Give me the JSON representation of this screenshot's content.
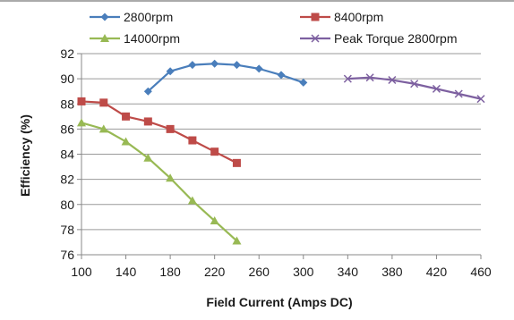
{
  "chart_data": {
    "type": "line",
    "title": "",
    "xlabel": "Field Current (Amps DC)",
    "ylabel": "Efficiency (%)",
    "xlim": [
      100,
      460
    ],
    "ylim": [
      76,
      92
    ],
    "x_ticks": [
      100,
      140,
      180,
      220,
      260,
      300,
      340,
      380,
      420,
      460
    ],
    "y_ticks": [
      76,
      78,
      80,
      82,
      84,
      86,
      88,
      90,
      92
    ],
    "grid": "horizontal",
    "legend_position": "top",
    "series": [
      {
        "name": "2800rpm",
        "color": "#4a7ebb",
        "marker": "diamond",
        "x": [
          160,
          180,
          200,
          220,
          240,
          260,
          280,
          300
        ],
        "values": [
          89.0,
          90.6,
          91.1,
          91.2,
          91.1,
          90.8,
          90.3,
          89.7
        ]
      },
      {
        "name": "8400rpm",
        "color": "#be4b48",
        "marker": "square",
        "x": [
          100,
          120,
          140,
          160,
          180,
          200,
          220,
          240
        ],
        "values": [
          88.2,
          88.1,
          87.0,
          86.6,
          86.0,
          85.1,
          84.2,
          83.3
        ]
      },
      {
        "name": "14000rpm",
        "color": "#98b954",
        "marker": "triangle",
        "x": [
          100,
          120,
          140,
          160,
          180,
          200,
          220,
          240
        ],
        "values": [
          86.5,
          86.0,
          85.0,
          83.7,
          82.1,
          80.3,
          78.7,
          77.1
        ]
      },
      {
        "name": "Peak Torque 2800rpm",
        "color": "#7d60a0",
        "marker": "x",
        "x": [
          340,
          360,
          380,
          400,
          420,
          440,
          460
        ],
        "values": [
          90.0,
          90.1,
          89.9,
          89.6,
          89.2,
          88.8,
          88.4
        ]
      }
    ]
  }
}
